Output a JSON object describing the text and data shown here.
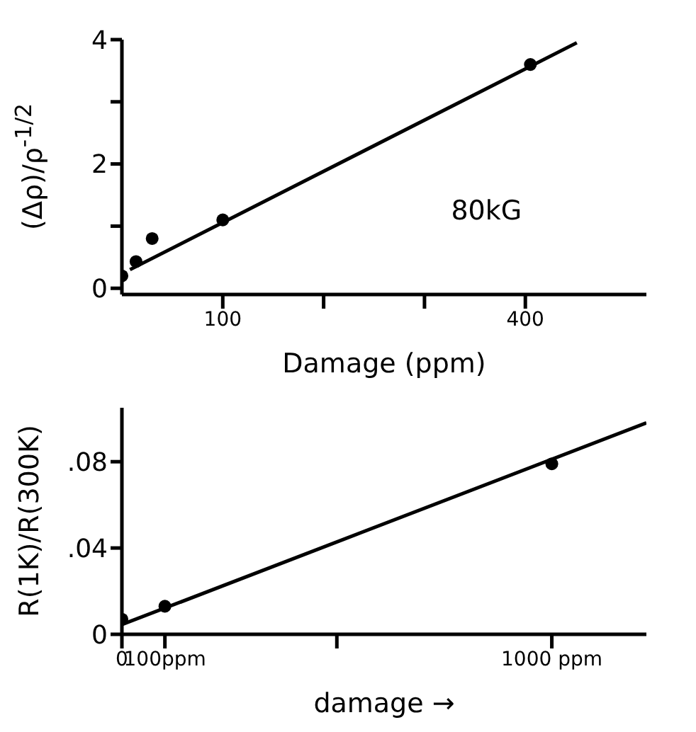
{
  "chart_data": [
    {
      "type": "scatter",
      "xlabel": "Damage (ppm)",
      "ylabel": "(Δρ)/ρ$^{-1/2}$",
      "annotations": [
        "80kG"
      ],
      "xlim": [
        0,
        520
      ],
      "xticks": [
        {
          "value": 100,
          "label": "100"
        },
        {
          "value": 200,
          "label": null
        },
        {
          "value": 300,
          "label": null
        },
        {
          "value": 400,
          "label": "400"
        }
      ],
      "ylim": [
        -0.1,
        4
      ],
      "yticks": [
        0,
        {
          "value": 1,
          "label": null
        },
        2,
        {
          "value": 3,
          "label": null
        },
        4
      ],
      "grid": false,
      "series": [
        {
          "marker": "circle",
          "color": "#000000",
          "x": [
            0,
            14,
            30,
            100,
            405
          ],
          "values": [
            0.2,
            0.43,
            0.8,
            1.1,
            3.6
          ]
        },
        {
          "type": "line",
          "marker": "none",
          "color": "#000000",
          "x": [
            8,
            451
          ],
          "values": [
            0.3,
            3.95
          ]
        }
      ]
    },
    {
      "type": "scatter",
      "xlabel": "damage →",
      "ylabel": "R(1K)/R(300K)",
      "xlim": [
        0,
        1220
      ],
      "xticks": [
        0,
        {
          "value": 100,
          "label": "100ppm"
        },
        {
          "value": 500,
          "label": null
        },
        {
          "value": 1000,
          "label": "1000 ppm"
        }
      ],
      "ylim": [
        0,
        0.105
      ],
      "yticks": [
        0,
        {
          "value": 0.04,
          "label": ".04"
        },
        {
          "value": 0.08,
          "label": ".08"
        }
      ],
      "grid": false,
      "series": [
        {
          "marker": "circle",
          "color": "#000000",
          "x": [
            0,
            100,
            1000
          ],
          "values": [
            0.007,
            0.013,
            0.079
          ]
        },
        {
          "type": "line",
          "marker": "none",
          "color": "#000000",
          "x": [
            0,
            1220
          ],
          "values": [
            0.0045,
            0.098
          ]
        }
      ]
    }
  ]
}
